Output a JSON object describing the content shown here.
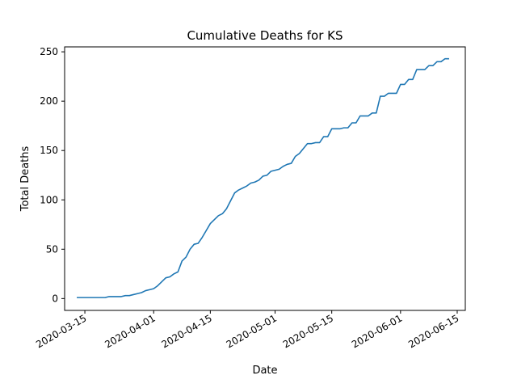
{
  "chart_data": {
    "type": "line",
    "title": "Cumulative Deaths for KS",
    "xlabel": "Date",
    "ylabel": "Total Deaths",
    "xlim": [
      "2020-03-10",
      "2020-06-17"
    ],
    "ylim": [
      -12,
      255
    ],
    "x_ticks": [
      "2020-03-15",
      "2020-04-01",
      "2020-04-15",
      "2020-05-01",
      "2020-05-15",
      "2020-06-01",
      "2020-06-15"
    ],
    "y_ticks": [
      0,
      50,
      100,
      150,
      200,
      250
    ],
    "grid": false,
    "series": [
      {
        "name": "",
        "color": "#1f77b4",
        "points": [
          [
            "2020-03-13",
            1
          ],
          [
            "2020-03-20",
            1
          ],
          [
            "2020-03-21",
            2
          ],
          [
            "2020-03-24",
            2
          ],
          [
            "2020-03-25",
            3
          ],
          [
            "2020-03-26",
            3
          ],
          [
            "2020-03-27",
            4
          ],
          [
            "2020-03-28",
            5
          ],
          [
            "2020-03-29",
            6
          ],
          [
            "2020-03-30",
            8
          ],
          [
            "2020-03-31",
            9
          ],
          [
            "2020-04-01",
            10
          ],
          [
            "2020-04-02",
            13
          ],
          [
            "2020-04-03",
            17
          ],
          [
            "2020-04-04",
            21
          ],
          [
            "2020-04-05",
            22
          ],
          [
            "2020-04-06",
            25
          ],
          [
            "2020-04-07",
            27
          ],
          [
            "2020-04-08",
            38
          ],
          [
            "2020-04-09",
            42
          ],
          [
            "2020-04-10",
            50
          ],
          [
            "2020-04-11",
            55
          ],
          [
            "2020-04-12",
            56
          ],
          [
            "2020-04-13",
            62
          ],
          [
            "2020-04-14",
            69
          ],
          [
            "2020-04-15",
            76
          ],
          [
            "2020-04-16",
            80
          ],
          [
            "2020-04-17",
            84
          ],
          [
            "2020-04-18",
            86
          ],
          [
            "2020-04-19",
            91
          ],
          [
            "2020-04-20",
            99
          ],
          [
            "2020-04-21",
            107
          ],
          [
            "2020-04-22",
            110
          ],
          [
            "2020-04-23",
            112
          ],
          [
            "2020-04-24",
            114
          ],
          [
            "2020-04-25",
            117
          ],
          [
            "2020-04-26",
            118
          ],
          [
            "2020-04-27",
            120
          ],
          [
            "2020-04-28",
            124
          ],
          [
            "2020-04-29",
            125
          ],
          [
            "2020-04-30",
            129
          ],
          [
            "2020-05-01",
            130
          ],
          [
            "2020-05-02",
            131
          ],
          [
            "2020-05-03",
            134
          ],
          [
            "2020-05-04",
            136
          ],
          [
            "2020-05-05",
            137
          ],
          [
            "2020-05-06",
            144
          ],
          [
            "2020-05-07",
            147
          ],
          [
            "2020-05-08",
            152
          ],
          [
            "2020-05-09",
            157
          ],
          [
            "2020-05-10",
            157
          ],
          [
            "2020-05-11",
            158
          ],
          [
            "2020-05-12",
            158
          ],
          [
            "2020-05-13",
            164
          ],
          [
            "2020-05-14",
            164
          ],
          [
            "2020-05-15",
            172
          ],
          [
            "2020-05-16",
            172
          ],
          [
            "2020-05-17",
            172
          ],
          [
            "2020-05-18",
            173
          ],
          [
            "2020-05-19",
            173
          ],
          [
            "2020-05-20",
            178
          ],
          [
            "2020-05-21",
            178
          ],
          [
            "2020-05-22",
            185
          ],
          [
            "2020-05-23",
            185
          ],
          [
            "2020-05-24",
            185
          ],
          [
            "2020-05-25",
            188
          ],
          [
            "2020-05-26",
            188
          ],
          [
            "2020-05-27",
            205
          ],
          [
            "2020-05-28",
            205
          ],
          [
            "2020-05-29",
            208
          ],
          [
            "2020-05-30",
            208
          ],
          [
            "2020-05-31",
            208
          ],
          [
            "2020-06-01",
            217
          ],
          [
            "2020-06-02",
            217
          ],
          [
            "2020-06-03",
            222
          ],
          [
            "2020-06-04",
            222
          ],
          [
            "2020-06-05",
            232
          ],
          [
            "2020-06-06",
            232
          ],
          [
            "2020-06-07",
            232
          ],
          [
            "2020-06-08",
            236
          ],
          [
            "2020-06-09",
            236
          ],
          [
            "2020-06-10",
            240
          ],
          [
            "2020-06-11",
            240
          ],
          [
            "2020-06-12",
            243
          ],
          [
            "2020-06-13",
            243
          ]
        ]
      }
    ]
  }
}
